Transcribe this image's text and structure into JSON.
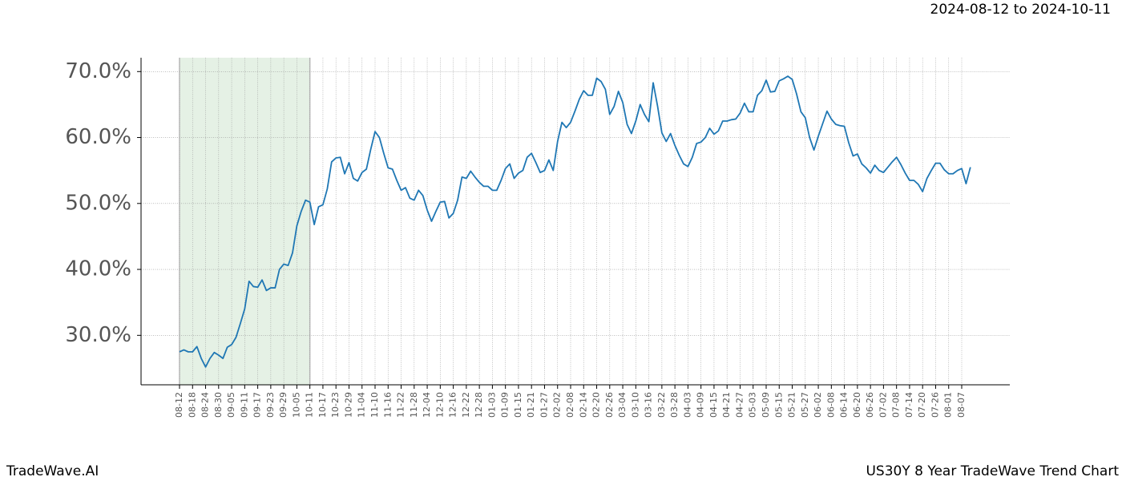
{
  "header": {
    "date_range": "2024-08-12 to 2024-10-11"
  },
  "footer": {
    "brand": "TradeWave.AI",
    "chart_name": "US30Y 8 Year TradeWave Trend Chart"
  },
  "chart_data": {
    "type": "line",
    "color": "#1f77b4",
    "grid": true,
    "highlight": {
      "from": 0,
      "to": 30,
      "color": "#e5f1e5"
    },
    "ylim": [
      22.5,
      72.1
    ],
    "yticks": [
      {
        "value": 30,
        "label": "30.0%"
      },
      {
        "value": 40,
        "label": "40.0%"
      },
      {
        "value": 50,
        "label": "50.0%"
      },
      {
        "value": 60,
        "label": "60.0%"
      },
      {
        "value": 70,
        "label": "70.0%"
      }
    ],
    "categories": [
      "08-12",
      null,
      null,
      "08-18",
      null,
      null,
      "08-24",
      null,
      null,
      "08-30",
      null,
      null,
      "09-05",
      null,
      null,
      "09-11",
      null,
      null,
      "09-17",
      null,
      null,
      "09-23",
      null,
      null,
      "09-29",
      null,
      null,
      "10-05",
      null,
      null,
      "10-11",
      null,
      null,
      "10-17",
      null,
      null,
      "10-23",
      null,
      null,
      "10-29",
      null,
      null,
      "11-04",
      null,
      null,
      "11-10",
      null,
      null,
      "11-16",
      null,
      null,
      "11-22",
      null,
      null,
      "11-28",
      null,
      null,
      "12-04",
      null,
      null,
      "12-10",
      null,
      null,
      "12-16",
      null,
      null,
      "12-22",
      null,
      null,
      "12-28",
      null,
      null,
      "01-03",
      null,
      null,
      "01-09",
      null,
      null,
      "01-15",
      null,
      null,
      "01-21",
      null,
      null,
      "01-27",
      null,
      null,
      "02-02",
      null,
      null,
      "02-08",
      null,
      null,
      "02-14",
      null,
      null,
      "02-20",
      null,
      null,
      "02-26",
      null,
      null,
      "03-04",
      null,
      null,
      "03-10",
      null,
      null,
      "03-16",
      null,
      null,
      "03-22",
      null,
      null,
      "03-28",
      null,
      null,
      "04-03",
      null,
      null,
      "04-09",
      null,
      null,
      "04-15",
      null,
      null,
      "04-21",
      null,
      null,
      "04-27",
      null,
      null,
      "05-03",
      null,
      null,
      "05-09",
      null,
      null,
      "05-15",
      null,
      null,
      "05-21",
      null,
      null,
      "05-27",
      null,
      null,
      "06-02",
      null,
      null,
      "06-08",
      null,
      null,
      "06-14",
      null,
      null,
      "06-20",
      null,
      null,
      "06-26",
      null,
      null,
      "07-02",
      null,
      null,
      "07-08",
      null,
      null,
      "07-14",
      null,
      null,
      "07-20",
      null,
      null,
      "07-26",
      null,
      null,
      "08-01",
      null,
      null,
      "08-07",
      null,
      null
    ],
    "values": [
      27.5,
      27.8,
      27.5,
      27.5,
      28.3,
      26.5,
      25.2,
      26.5,
      27.4,
      27,
      26.5,
      28.2,
      28.6,
      29.7,
      31.8,
      34,
      38.2,
      37.4,
      37.3,
      38.4,
      36.8,
      37.2,
      37.2,
      40,
      40.8,
      40.6,
      42.5,
      46.6,
      48.8,
      50.5,
      50.2,
      46.8,
      49.5,
      49.8,
      52.2,
      56.3,
      56.9,
      57,
      54.5,
      56.2,
      53.8,
      53.4,
      54.7,
      55.2,
      58.2,
      60.9,
      60,
      57.6,
      55.4,
      55.2,
      53.5,
      52,
      52.4,
      50.8,
      50.5,
      52,
      51.2,
      49,
      47.3,
      48.8,
      50.2,
      50.3,
      47.8,
      48.5,
      50.5,
      54,
      53.8,
      54.9,
      54,
      53.2,
      52.6,
      52.6,
      52,
      52,
      53.5,
      55.3,
      56,
      53.8,
      54.6,
      55,
      57,
      57.6,
      56.2,
      54.7,
      55,
      56.6,
      55,
      59.4,
      62.3,
      61.5,
      62.3,
      64,
      65.8,
      67.1,
      66.4,
      66.4,
      69,
      68.5,
      67.3,
      63.5,
      64.7,
      67,
      65.3,
      62,
      60.6,
      62.5,
      65,
      63.5,
      62.4,
      68.3,
      64.8,
      60.7,
      59.4,
      60.6,
      58.8,
      57.3,
      56,
      55.6,
      57,
      59.1,
      59.3,
      60,
      61.4,
      60.5,
      61,
      62.5,
      62.5,
      62.7,
      62.8,
      63.7,
      65.2,
      63.9,
      63.9,
      66.4,
      67.1,
      68.7,
      66.9,
      67,
      68.6,
      68.9,
      69.3,
      68.8,
      66.6,
      63.9,
      63,
      60,
      58.1,
      60.2,
      62.1,
      64,
      62.8,
      62,
      61.8,
      61.7,
      59.2,
      57.2,
      57.5,
      56,
      55.4,
      54.6,
      55.8,
      55,
      54.7,
      55.5,
      56.3,
      57,
      55.9,
      54.6,
      53.5,
      53.5,
      52.9,
      51.8,
      53.8,
      55,
      56.1,
      56.1,
      55.1,
      54.5,
      54.5,
      55,
      55.3,
      53,
      55.5
    ]
  }
}
